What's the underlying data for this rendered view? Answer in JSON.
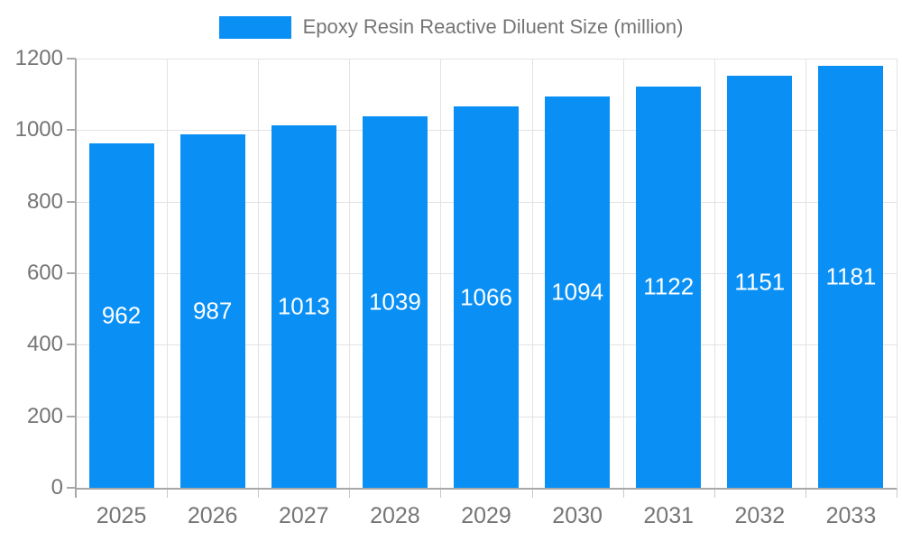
{
  "chart_data": {
    "type": "bar",
    "title": "Epoxy Resin Reactive Diluent Size (million)",
    "categories": [
      "2025",
      "2026",
      "2027",
      "2028",
      "2029",
      "2030",
      "2031",
      "2032",
      "2033"
    ],
    "values": [
      962,
      987,
      1013,
      1039,
      1066,
      1094,
      1122,
      1151,
      1181
    ],
    "xlabel": "",
    "ylabel": "",
    "ylim": [
      0,
      1200
    ],
    "yticks": [
      0,
      200,
      400,
      600,
      800,
      1000,
      1200
    ],
    "grid": true,
    "legend_position": "top-center",
    "legend_entries": [
      "Epoxy Resin Reactive Diluent Size (million)"
    ],
    "value_label_position": "inside-center"
  },
  "colors": {
    "bar": "#0A90F5",
    "axis_text": "#757575",
    "axis_line": "#A8A8A8",
    "gridline": "#E3E3E3",
    "value_label": "#FFFFFF",
    "background": "#FFFFFF"
  }
}
